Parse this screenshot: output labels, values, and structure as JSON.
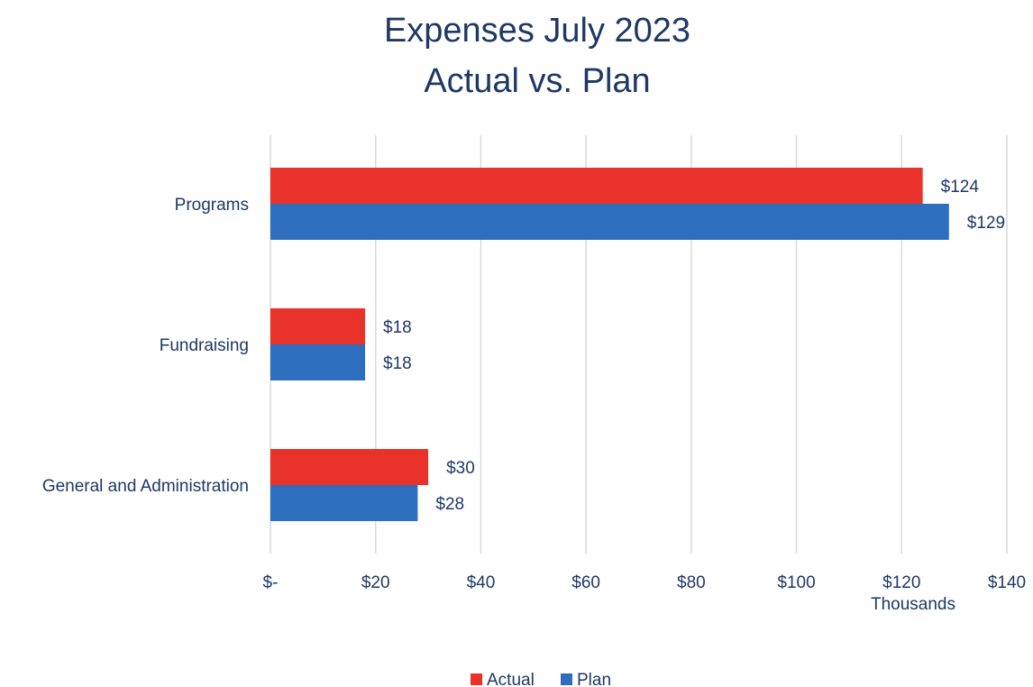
{
  "chart_data": {
    "type": "bar",
    "orientation": "horizontal",
    "title_lines": [
      "Expenses July 2023",
      "Actual vs. Plan"
    ],
    "categories": [
      "Programs",
      "Fundraising",
      "General and Administration"
    ],
    "series": [
      {
        "name": "Actual",
        "color": "#e8322a",
        "values": [
          124,
          18,
          30
        ],
        "labels": [
          "$124",
          "$18",
          "$30"
        ]
      },
      {
        "name": "Plan",
        "color": "#2e6ebe",
        "values": [
          129,
          18,
          28
        ],
        "labels": [
          "$129",
          "$18",
          "$28"
        ]
      }
    ],
    "xlim": [
      0,
      140
    ],
    "x_ticks": [
      0,
      20,
      40,
      60,
      80,
      100,
      120,
      140
    ],
    "x_tick_labels": [
      "$-",
      "$20",
      "$40",
      "$60",
      "$80",
      "$100",
      "$120",
      "$140"
    ],
    "x_unit_label": "Thousands",
    "grid": "vertical",
    "legend_position": "bottom"
  }
}
